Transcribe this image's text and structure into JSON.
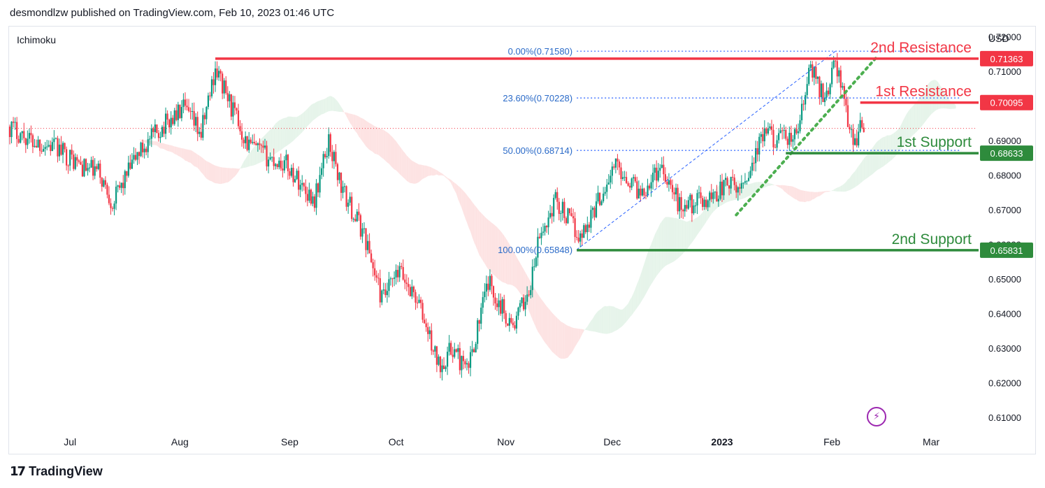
{
  "header": {
    "text": "desmondlzw published on TradingView.com, Feb 10, 2023 01:46 UTC"
  },
  "footer": {
    "brand": "TradingView",
    "logo_icon": "tradingview-logo-icon"
  },
  "chart_data": {
    "type": "candlestick",
    "indicator": "Ichimoku",
    "currency": "USD",
    "y_ticks": [
      "0.72000",
      "0.71000",
      "0.70000",
      "0.69000",
      "0.68000",
      "0.67000",
      "0.66000",
      "0.65000",
      "0.64000",
      "0.63000",
      "0.62000",
      "0.61000"
    ],
    "ylim": [
      0.607,
      0.7225
    ],
    "x_ticks": [
      {
        "label": "Jul",
        "date": "2022-07-01",
        "bold": false
      },
      {
        "label": "Aug",
        "date": "2022-08-01",
        "bold": false
      },
      {
        "label": "Sep",
        "date": "2022-09-01",
        "bold": false
      },
      {
        "label": "Oct",
        "date": "2022-10-01",
        "bold": false
      },
      {
        "label": "Nov",
        "date": "2022-11-01",
        "bold": false
      },
      {
        "label": "Dec",
        "date": "2022-12-01",
        "bold": false
      },
      {
        "label": "2023",
        "date": "2023-01-01",
        "bold": true
      },
      {
        "label": "Feb",
        "date": "2023-02-01",
        "bold": false
      },
      {
        "label": "Mar",
        "date": "2023-03-01",
        "bold": false
      }
    ],
    "xlim": [
      "2022-06-14",
      "2023-03-14"
    ],
    "price_path": [
      [
        "2022-06-14",
        0.694
      ],
      [
        "2022-06-20",
        0.69
      ],
      [
        "2022-06-27",
        0.688
      ],
      [
        "2022-07-05",
        0.682
      ],
      [
        "2022-07-09",
        0.681
      ],
      [
        "2022-07-13",
        0.672
      ],
      [
        "2022-07-20",
        0.686
      ],
      [
        "2022-07-27",
        0.694
      ],
      [
        "2022-08-02",
        0.699
      ],
      [
        "2022-08-07",
        0.692
      ],
      [
        "2022-08-11",
        0.711
      ],
      [
        "2022-08-15",
        0.701
      ],
      [
        "2022-08-20",
        0.689
      ],
      [
        "2022-08-26",
        0.685
      ],
      [
        "2022-08-31",
        0.683
      ],
      [
        "2022-09-06",
        0.675
      ],
      [
        "2022-09-08",
        0.673
      ],
      [
        "2022-09-12",
        0.69
      ],
      [
        "2022-09-16",
        0.675
      ],
      [
        "2022-09-22",
        0.663
      ],
      [
        "2022-09-27",
        0.644
      ],
      [
        "2022-10-02",
        0.652
      ],
      [
        "2022-10-07",
        0.644
      ],
      [
        "2022-10-13",
        0.625
      ],
      [
        "2022-10-17",
        0.63
      ],
      [
        "2022-10-21",
        0.623
      ],
      [
        "2022-10-27",
        0.649
      ],
      [
        "2022-11-03",
        0.636
      ],
      [
        "2022-11-08",
        0.648
      ],
      [
        "2022-11-10",
        0.66
      ],
      [
        "2022-11-15",
        0.673
      ],
      [
        "2022-11-22",
        0.662
      ],
      [
        "2022-12-02",
        0.683
      ],
      [
        "2022-12-09",
        0.675
      ],
      [
        "2022-12-15",
        0.683
      ],
      [
        "2022-12-20",
        0.671
      ],
      [
        "2022-12-28",
        0.673
      ],
      [
        "2023-01-03",
        0.678
      ],
      [
        "2023-01-05",
        0.675
      ],
      [
        "2023-01-08",
        0.68
      ],
      [
        "2023-01-13",
        0.692
      ],
      [
        "2023-01-18",
        0.69
      ],
      [
        "2023-01-22",
        0.691
      ],
      [
        "2023-01-26",
        0.711
      ],
      [
        "2023-01-30",
        0.702
      ],
      [
        "2023-02-02",
        0.713
      ],
      [
        "2023-02-05",
        0.699
      ],
      [
        "2023-02-07",
        0.689
      ],
      [
        "2023-02-09",
        0.694
      ],
      [
        "2023-02-10",
        0.693
      ]
    ],
    "last_price_line": 0.6935,
    "fibonacci": [
      {
        "label": "0.00%(0.71580)",
        "value": 0.7158
      },
      {
        "label": "23.60%(0.70228)",
        "value": 0.70228
      },
      {
        "label": "50.00%(0.68714)",
        "value": 0.68714
      },
      {
        "label": "100.00%(0.65848)",
        "value": 0.65848
      }
    ],
    "fib_anchor_dates": [
      "2022-11-21",
      "2023-02-02"
    ],
    "levels": [
      {
        "name": "2nd Resistance",
        "value": 0.71363,
        "price_label": "0.71363",
        "color": "#f23645",
        "start": "2022-08-11"
      },
      {
        "name": "1st Resistance",
        "value": 0.70095,
        "price_label": "0.70095",
        "color": "#f23645",
        "start": "2023-02-09"
      },
      {
        "name": "1st Support",
        "value": 0.68633,
        "price_label": "0.68633",
        "color": "#2e8b3c",
        "start": "2023-01-19"
      },
      {
        "name": "2nd Support",
        "value": 0.65831,
        "price_label": "0.65831",
        "color": "#2e8b3c",
        "start": "2022-11-21"
      }
    ],
    "trendline": {
      "from": [
        "2023-01-05",
        0.6685
      ],
      "to": [
        "2023-02-14",
        0.7145
      ]
    },
    "colors": {
      "up": "#089981",
      "down": "#f23645",
      "fib": "#2962ff",
      "cloud_bull": "#e6f4ea",
      "cloud_bear": "#fde3e3",
      "trend": "#4caf50"
    }
  }
}
